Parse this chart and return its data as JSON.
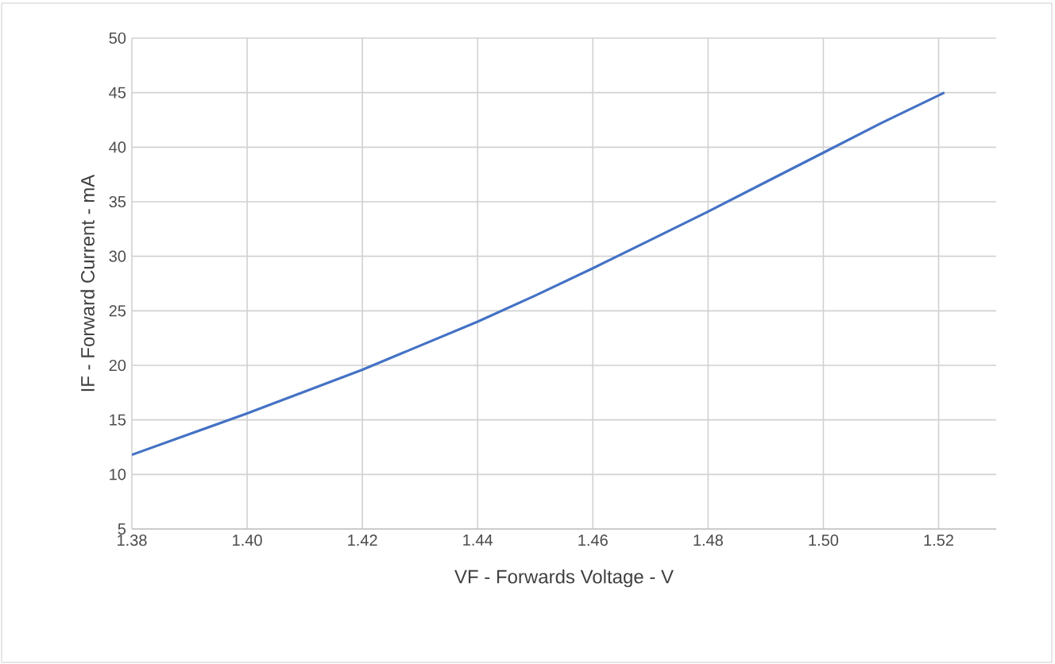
{
  "chart_data": {
    "type": "line",
    "xlabel": "VF - Forwards Voltage - V",
    "ylabel": "IF - Forward Current - mA",
    "x": [
      1.38,
      1.39,
      1.4,
      1.41,
      1.42,
      1.43,
      1.44,
      1.45,
      1.46,
      1.47,
      1.48,
      1.49,
      1.5,
      1.51,
      1.521
    ],
    "series": [
      {
        "color": "#4472c4",
        "values": [
          11.8,
          13.7,
          15.6,
          17.6,
          19.6,
          21.8,
          24.0,
          26.4,
          28.9,
          31.5,
          34.1,
          36.8,
          39.5,
          42.2,
          45.0
        ]
      }
    ],
    "xlim": [
      1.38,
      1.53
    ],
    "ylim": [
      5,
      50
    ],
    "xticks": [
      {
        "value": 1.38,
        "label": "1.38"
      },
      {
        "value": 1.4,
        "label": "1.40"
      },
      {
        "value": 1.42,
        "label": "1.42"
      },
      {
        "value": 1.44,
        "label": "1.44"
      },
      {
        "value": 1.46,
        "label": "1.46"
      },
      {
        "value": 1.48,
        "label": "1.48"
      },
      {
        "value": 1.5,
        "label": "1.50"
      },
      {
        "value": 1.52,
        "label": "1.52"
      }
    ],
    "yticks": [
      5,
      10,
      15,
      20,
      25,
      30,
      35,
      40,
      45,
      50
    ],
    "grid": true,
    "marker": "none",
    "line_style": "solid"
  }
}
